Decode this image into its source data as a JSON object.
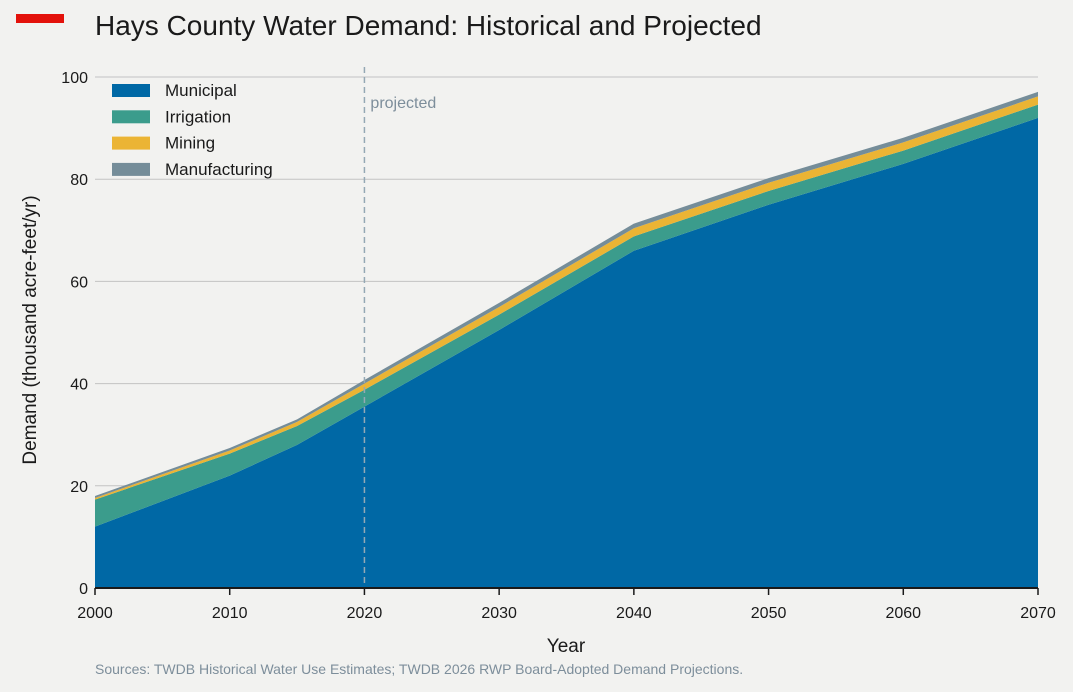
{
  "chart_data": {
    "type": "area",
    "stacked": true,
    "title": "Hays County Water Demand: Historical and Projected",
    "xlabel": "Year",
    "ylabel": "Demand (thousand acre-feet/yr)",
    "x": [
      2000,
      2010,
      2015,
      2020,
      2030,
      2040,
      2050,
      2060,
      2070
    ],
    "xlim": [
      2000,
      2070
    ],
    "ylim": [
      0,
      100
    ],
    "xticks": [
      2000,
      2010,
      2020,
      2030,
      2040,
      2050,
      2060,
      2070
    ],
    "yticks": [
      0,
      20,
      40,
      60,
      80,
      100
    ],
    "grid": "horizontal",
    "legend_position": "top-left",
    "series": [
      {
        "name": "Municipal",
        "color": "#0068a5",
        "values": [
          12,
          22,
          28,
          35.5,
          50.5,
          66,
          75,
          83,
          92
        ]
      },
      {
        "name": "Irrigation",
        "color": "#3b9c8c",
        "values": [
          5.3,
          4.3,
          3.7,
          3.3,
          3,
          2.8,
          2.7,
          2.6,
          2.6
        ]
      },
      {
        "name": "Mining",
        "color": "#ebb434",
        "values": [
          0.3,
          0.6,
          0.8,
          1.2,
          1.5,
          1.6,
          1.6,
          1.6,
          1.6
        ]
      },
      {
        "name": "Manufacturing",
        "color": "#758d99",
        "values": [
          0.4,
          0.5,
          0.5,
          0.7,
          0.8,
          0.9,
          0.9,
          0.9,
          0.9
        ]
      }
    ],
    "annotations": [
      {
        "x": 2020,
        "text": "projected",
        "line_color": "#94a8b4"
      }
    ]
  },
  "source_note": "Sources: TWDB Historical Water Use Estimates; TWDB 2026 RWP Board-Adopted Demand Projections.",
  "colors": {
    "background": "#f2f2f0",
    "accent": "#e3120b",
    "gridline": "#c3c3c3",
    "baseline": "#1a1a1a"
  }
}
